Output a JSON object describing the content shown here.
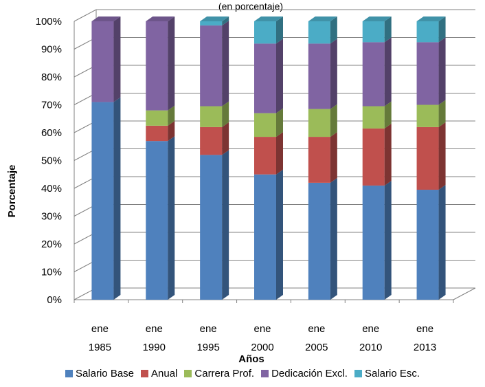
{
  "chart_data": {
    "type": "bar",
    "stacked": true,
    "three_d": true,
    "subtitle": "(en porcentaje)",
    "xlabel": "Años",
    "ylabel": "Porcentaje",
    "ylim": [
      0,
      100
    ],
    "y_ticks": [
      "0%",
      "10%",
      "20%",
      "30%",
      "40%",
      "50%",
      "60%",
      "70%",
      "80%",
      "90%",
      "100%"
    ],
    "categories": [
      {
        "line1": "ene",
        "line2": "1985"
      },
      {
        "line1": "ene",
        "line2": "1990"
      },
      {
        "line1": "ene",
        "line2": "1995"
      },
      {
        "line1": "ene",
        "line2": "2000"
      },
      {
        "line1": "ene",
        "line2": "2005"
      },
      {
        "line1": "ene",
        "line2": "2010"
      },
      {
        "line1": "ene",
        "line2": "2013"
      }
    ],
    "grid": true,
    "legend_position": "bottom",
    "series": [
      {
        "name": "Salario Base",
        "color": "#4F81BD",
        "values": [
          71,
          57,
          52,
          45,
          42,
          41,
          39.5
        ]
      },
      {
        "name": "Anual",
        "color": "#C0504D",
        "values": [
          0,
          5.5,
          10,
          13.5,
          16.5,
          20.5,
          22.5
        ]
      },
      {
        "name": "Carrera Prof.",
        "color": "#9BBB59",
        "values": [
          0,
          5.5,
          7.5,
          8.5,
          10,
          8,
          8
        ]
      },
      {
        "name": "Dedicación Excl.",
        "color": "#8064A2",
        "values": [
          29,
          32,
          29,
          25,
          23.5,
          23,
          22.5
        ]
      },
      {
        "name": "Salario Esc.",
        "color": "#4BACC6",
        "values": [
          0,
          0,
          1.5,
          8,
          8,
          7.5,
          7.5
        ]
      }
    ]
  }
}
